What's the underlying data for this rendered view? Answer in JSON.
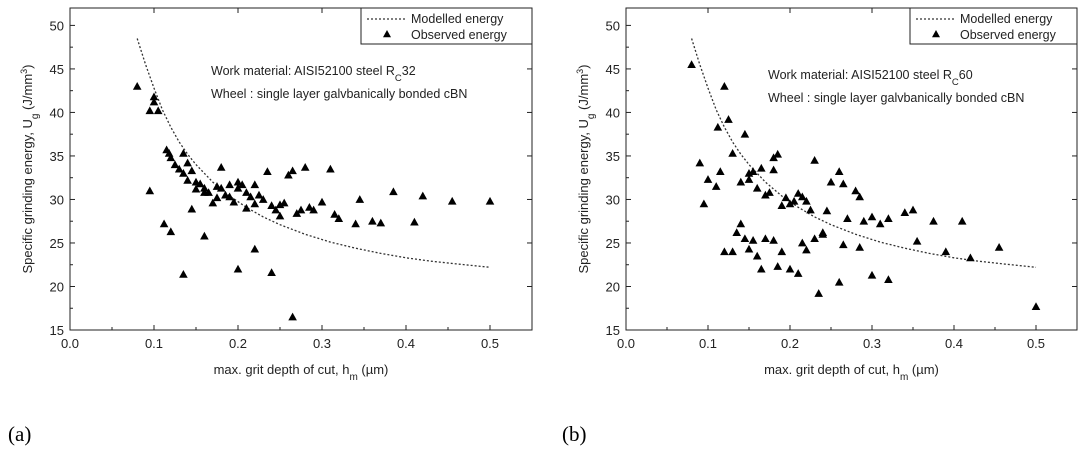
{
  "panels": [
    {
      "label": "(a)",
      "chart_data": {
        "type": "scatter",
        "xlabel_main": "max. grit depth of cut, h",
        "xlabel_sub": "m",
        "xlabel_unit": " (µm)",
        "ylabel_main": "Specific grinding energy, U",
        "ylabel_sub": "g",
        "ylabel_unit": " (J/mm",
        "ylabel_sup": "3",
        "ylabel_end": ")",
        "xlim": [
          0.0,
          0.55
        ],
        "ylim": [
          15,
          52
        ],
        "xticks": [
          "0.0",
          "0.1",
          "0.2",
          "0.3",
          "0.4",
          "0.5"
        ],
        "yticks": [
          "15",
          "20",
          "25",
          "30",
          "35",
          "40",
          "45",
          "50"
        ],
        "annotation_line1_pre": "Work material: AISI52100 steel R",
        "annotation_line1_sub": "C",
        "annotation_line1_post": "32",
        "annotation_line2": "Wheel : single layer galvbanically bonded cBN",
        "legend": [
          "Modelled energy",
          "Observed energy"
        ],
        "legend_position": "top-right",
        "series": [
          {
            "name": "Modelled energy",
            "style": "dotted-line",
            "x": [
              0.08,
              0.09,
              0.1,
              0.11,
              0.12,
              0.13,
              0.14,
              0.15,
              0.17,
              0.19,
              0.21,
              0.23,
              0.25,
              0.28,
              0.31,
              0.34,
              0.37,
              0.4,
              0.43,
              0.46,
              0.5
            ],
            "y": [
              48.5,
              45.5,
              42.8,
              40.3,
              38.3,
              36.6,
              35.2,
              34.0,
              32.0,
              30.4,
              29.1,
              28.0,
              27.1,
              26.0,
              25.1,
              24.4,
              23.8,
              23.3,
              22.9,
              22.6,
              22.2
            ]
          },
          {
            "name": "Observed energy",
            "style": "triangle",
            "x": [
              0.08,
              0.095,
              0.1,
              0.1,
              0.105,
              0.115,
              0.118,
              0.12,
              0.125,
              0.13,
              0.135,
              0.135,
              0.14,
              0.14,
              0.145,
              0.15,
              0.15,
              0.155,
              0.16,
              0.16,
              0.165,
              0.17,
              0.175,
              0.175,
              0.18,
              0.18,
              0.185,
              0.19,
              0.19,
              0.195,
              0.2,
              0.2,
              0.205,
              0.21,
              0.21,
              0.215,
              0.22,
              0.22,
              0.225,
              0.23,
              0.235,
              0.24,
              0.245,
              0.25,
              0.25,
              0.255,
              0.26,
              0.265,
              0.27,
              0.275,
              0.28,
              0.285,
              0.29,
              0.3,
              0.31,
              0.315,
              0.32,
              0.34,
              0.345,
              0.36,
              0.37,
              0.385,
              0.41,
              0.42,
              0.455,
              0.5,
              0.112,
              0.12,
              0.095,
              0.135,
              0.145,
              0.16,
              0.2,
              0.22,
              0.24,
              0.265
            ],
            "y": [
              43.0,
              40.2,
              41.8,
              41.2,
              40.2,
              35.7,
              35.3,
              34.8,
              34.0,
              33.5,
              35.3,
              33.0,
              32.2,
              34.2,
              33.3,
              32.0,
              31.2,
              31.8,
              30.8,
              31.3,
              30.8,
              29.6,
              31.5,
              30.2,
              31.3,
              33.7,
              30.5,
              31.7,
              30.3,
              29.7,
              32.0,
              31.3,
              31.7,
              30.8,
              29.0,
              30.3,
              31.7,
              29.5,
              30.5,
              30.0,
              33.2,
              29.3,
              28.8,
              29.4,
              28.1,
              29.6,
              32.8,
              33.3,
              28.4,
              28.8,
              33.7,
              29.1,
              28.8,
              29.7,
              33.5,
              28.3,
              27.8,
              27.2,
              30.0,
              27.5,
              27.3,
              30.9,
              27.4,
              30.4,
              29.8,
              29.8,
              27.2,
              26.3,
              31.0,
              21.4,
              28.9,
              25.8,
              22.0,
              24.3,
              21.6,
              16.5
            ]
          }
        ]
      }
    },
    {
      "label": "(b)",
      "chart_data": {
        "type": "scatter",
        "xlabel_main": "max. grit depth of cut, h",
        "xlabel_sub": "m",
        "xlabel_unit": " (µm)",
        "ylabel_main": "Specific grinding energy, U",
        "ylabel_sub": "g",
        "ylabel_unit": " (J/mm",
        "ylabel_sup": "3",
        "ylabel_end": ")",
        "xlim": [
          0.0,
          0.55
        ],
        "ylim": [
          15,
          52
        ],
        "xticks": [
          "0.0",
          "0.1",
          "0.2",
          "0.3",
          "0.4",
          "0.5"
        ],
        "yticks": [
          "15",
          "20",
          "25",
          "30",
          "35",
          "40",
          "45",
          "50"
        ],
        "annotation_line1_pre": "Work material: AISI52100 steel R",
        "annotation_line1_sub": "C",
        "annotation_line1_post": "60",
        "annotation_line2": "Wheel : single layer galvbanically bonded cBN",
        "legend": [
          "Modelled energy",
          "Observed energy"
        ],
        "legend_position": "top-right",
        "series": [
          {
            "name": "Modelled energy",
            "style": "dotted-line",
            "x": [
              0.08,
              0.09,
              0.1,
              0.11,
              0.12,
              0.13,
              0.14,
              0.15,
              0.17,
              0.19,
              0.21,
              0.23,
              0.25,
              0.28,
              0.31,
              0.34,
              0.37,
              0.4,
              0.43,
              0.46,
              0.5
            ],
            "y": [
              48.5,
              45.5,
              42.8,
              40.3,
              38.3,
              36.6,
              35.2,
              34.0,
              32.0,
              30.4,
              29.1,
              28.0,
              27.1,
              26.0,
              25.1,
              24.4,
              23.8,
              23.3,
              22.9,
              22.6,
              22.2
            ]
          },
          {
            "name": "Observed energy",
            "style": "triangle",
            "x": [
              0.08,
              0.12,
              0.112,
              0.115,
              0.125,
              0.13,
              0.14,
              0.145,
              0.15,
              0.15,
              0.155,
              0.16,
              0.165,
              0.17,
              0.175,
              0.18,
              0.18,
              0.185,
              0.19,
              0.195,
              0.2,
              0.205,
              0.21,
              0.215,
              0.22,
              0.225,
              0.23,
              0.24,
              0.245,
              0.25,
              0.26,
              0.265,
              0.27,
              0.28,
              0.285,
              0.29,
              0.3,
              0.31,
              0.32,
              0.34,
              0.35,
              0.355,
              0.375,
              0.39,
              0.41,
              0.42,
              0.455,
              0.5,
              0.09,
              0.095,
              0.1,
              0.11,
              0.12,
              0.13,
              0.135,
              0.14,
              0.145,
              0.15,
              0.155,
              0.16,
              0.165,
              0.17,
              0.18,
              0.185,
              0.19,
              0.2,
              0.21,
              0.215,
              0.22,
              0.23,
              0.235,
              0.24,
              0.26,
              0.265,
              0.285,
              0.3,
              0.32
            ],
            "y": [
              45.5,
              43.0,
              38.3,
              33.2,
              39.2,
              35.3,
              32.0,
              37.5,
              33.0,
              32.3,
              33.2,
              31.3,
              33.6,
              30.5,
              30.8,
              34.8,
              33.4,
              35.2,
              29.3,
              30.2,
              29.5,
              29.8,
              30.7,
              30.3,
              29.8,
              28.8,
              34.5,
              26.2,
              28.7,
              32.0,
              33.2,
              31.8,
              27.8,
              31.0,
              30.3,
              27.5,
              28.0,
              27.2,
              27.8,
              28.5,
              28.8,
              25.2,
              27.5,
              24.0,
              27.5,
              23.3,
              24.5,
              17.7,
              34.2,
              29.5,
              32.3,
              31.5,
              24.0,
              24.0,
              26.2,
              27.2,
              25.5,
              24.3,
              25.3,
              23.5,
              22.0,
              25.5,
              25.3,
              22.3,
              24.0,
              22.0,
              21.5,
              25.0,
              24.2,
              25.5,
              19.2,
              26.0,
              20.5,
              24.8,
              24.5,
              21.3,
              20.8
            ]
          }
        ]
      }
    }
  ]
}
